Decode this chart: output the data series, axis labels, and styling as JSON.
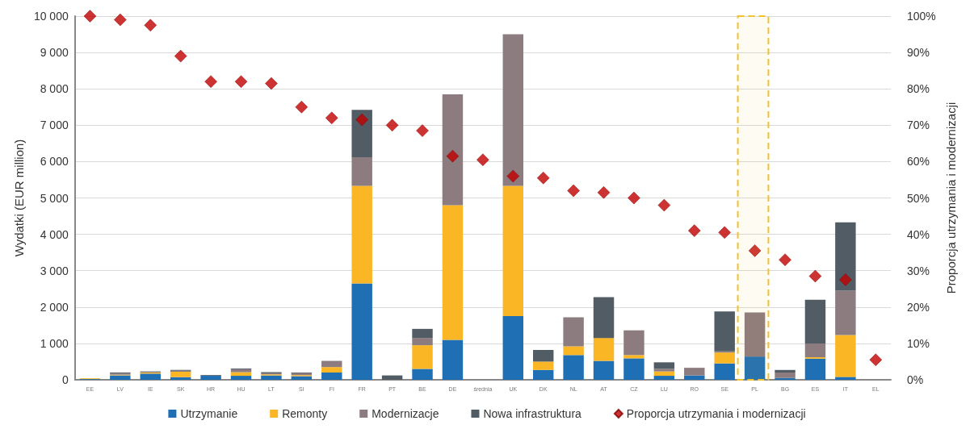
{
  "chart_data": {
    "type": "bar",
    "stacked": true,
    "categories": [
      "EE",
      "LV",
      "IE",
      "SK",
      "HR",
      "HU",
      "LT",
      "SI",
      "FI",
      "FR",
      "PT",
      "BE",
      "DE",
      "średnia",
      "UK",
      "DK",
      "NL",
      "AT",
      "CZ",
      "LU",
      "RO",
      "SE",
      "PL",
      "BG",
      "ES",
      "IT",
      "EL"
    ],
    "series": [
      {
        "name": "Utrzymanie",
        "color": "#1f6fb4",
        "values": [
          20,
          120,
          170,
          70,
          110,
          110,
          120,
          100,
          200,
          2650,
          0,
          300,
          1100,
          0,
          1750,
          270,
          680,
          520,
          590,
          110,
          120,
          450,
          640,
          50,
          580,
          80,
          0
        ]
      },
      {
        "name": "Remonty",
        "color": "#fbb625",
        "values": [
          20,
          20,
          30,
          150,
          0,
          100,
          30,
          30,
          150,
          2680,
          0,
          650,
          3700,
          0,
          3580,
          230,
          240,
          630,
          90,
          120,
          0,
          300,
          0,
          0,
          40,
          1150,
          0
        ]
      },
      {
        "name": "Modernizacje",
        "color": "#8c7b7f",
        "values": [
          null,
          30,
          20,
          30,
          0,
          80,
          30,
          50,
          170,
          790,
          0,
          200,
          3050,
          0,
          4170,
          0,
          800,
          0,
          680,
          70,
          210,
          30,
          1210,
          150,
          380,
          1220,
          0
        ]
      },
      {
        "name": "Nowa infrastruktura",
        "color": "#525c65",
        "values": [
          0,
          30,
          10,
          20,
          20,
          20,
          30,
          20,
          0,
          1300,
          120,
          250,
          0,
          0,
          0,
          320,
          0,
          1120,
          0,
          180,
          0,
          1100,
          0,
          70,
          1200,
          1880,
          0
        ]
      },
      {
        "name": "Proporcja utrzymania i modernizacji",
        "type": "scatter",
        "axis": "y2",
        "marker": "diamond",
        "color": "#c00000",
        "values": [
          100,
          99,
          97.5,
          89,
          82,
          82,
          81.5,
          75,
          72,
          71.5,
          70,
          68.5,
          61.5,
          60.5,
          56,
          55.5,
          52,
          51.5,
          50,
          48,
          41,
          40.5,
          35.5,
          33,
          28.5,
          27.5,
          5.5
        ]
      }
    ],
    "ylabel": "Wydatki (EUR million)",
    "y2label": "Proporcja utrzymania i modernizacji",
    "ylim": [
      0,
      10000
    ],
    "yticks": [
      0,
      {
        "value": 1000,
        "label": "1 000"
      },
      {
        "value": 2000,
        "label": "2 000"
      },
      {
        "value": 3000,
        "label": "3 000"
      },
      {
        "value": 4000,
        "label": "4 000"
      },
      {
        "value": 5000,
        "label": "5 000"
      },
      {
        "value": 6000,
        "label": "6 000"
      },
      {
        "value": 7000,
        "label": "7 000"
      },
      {
        "value": 8000,
        "label": "8 000"
      },
      {
        "value": 9000,
        "label": "9 000"
      },
      {
        "value": 10000,
        "label": "10 000"
      }
    ],
    "y2lim": [
      0,
      100
    ],
    "y2ticks": [
      {
        "value": 0,
        "label": "0%"
      },
      {
        "value": 10,
        "label": "10%"
      },
      {
        "value": 20,
        "label": "20%"
      },
      {
        "value": 30,
        "label": "30%"
      },
      {
        "value": 40,
        "label": "40%"
      },
      {
        "value": 50,
        "label": "50%"
      },
      {
        "value": 60,
        "label": "60%"
      },
      {
        "value": 70,
        "label": "70%"
      },
      {
        "value": 80,
        "label": "80%"
      },
      {
        "value": 90,
        "label": "90%"
      },
      {
        "value": 100,
        "label": "100%"
      }
    ],
    "bands": [
      {
        "axis": "x",
        "from": "PL",
        "to": "PL",
        "color": "#f2c12e"
      }
    ],
    "grid": "y",
    "legend": "bottom"
  }
}
